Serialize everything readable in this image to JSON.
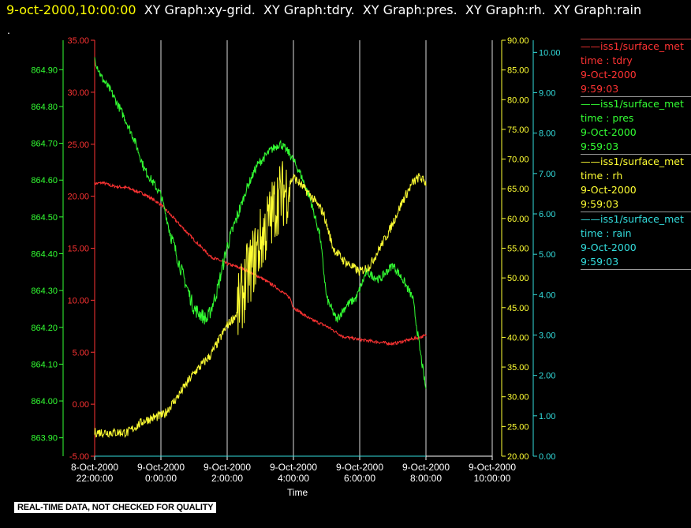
{
  "header": {
    "timestamp": "9-oct-2000,10:00:00",
    "graphs": [
      "XY Graph:xy-grid.",
      "XY Graph:tdry.",
      "XY Graph:pres.",
      "XY Graph:rh.",
      "XY Graph:rain"
    ],
    "dot": "."
  },
  "footer": "REAL-TIME DATA, NOT CHECKED FOR QUALITY",
  "legend": [
    {
      "source": "iss1/surface_met",
      "field": "time : tdry",
      "date": "9-Oct-2000",
      "time": "9:59:03",
      "color": "#ff3333"
    },
    {
      "source": "iss1/surface_met",
      "field": "time : pres",
      "date": "9-Oct-2000",
      "time": "9:59:03",
      "color": "#33ff33"
    },
    {
      "source": "iss1/surface_met",
      "field": "time : rh",
      "date": "9-Oct-2000",
      "time": "9:59:03",
      "color": "#ffff33"
    },
    {
      "source": "iss1/surface_met",
      "field": "time : rain",
      "date": "9-Oct-2000",
      "time": "9:59:03",
      "color": "#33dddd"
    }
  ],
  "chart_data": {
    "type": "line",
    "xlabel": "Time",
    "x_range": [
      "2000-10-08T22:00:00",
      "2000-10-09T10:00:00"
    ],
    "x_ticks": [
      {
        "date": "8-Oct-2000",
        "time": "22:00:00"
      },
      {
        "date": "9-Oct-2000",
        "time": "0:00:00"
      },
      {
        "date": "9-Oct-2000",
        "time": "2:00:00"
      },
      {
        "date": "9-Oct-2000",
        "time": "4:00:00"
      },
      {
        "date": "9-Oct-2000",
        "time": "6:00:00"
      },
      {
        "date": "9-Oct-2000",
        "time": "8:00:00"
      },
      {
        "date": "9-Oct-2000",
        "time": "10:00:00"
      }
    ],
    "vertical_grid": true,
    "axes": {
      "pres": {
        "side": "left",
        "color": "#33ff33",
        "ylim": [
          863.85,
          864.98
        ],
        "ticks": [
          "863.90",
          "864.00",
          "864.10",
          "864.20",
          "864.30",
          "864.40",
          "864.50",
          "864.60",
          "864.70",
          "864.80",
          "864.90"
        ]
      },
      "tdry": {
        "side": "left",
        "color": "#ff3333",
        "ylim": [
          -5,
          35
        ],
        "ticks": [
          "-5.00",
          "0.00",
          "5.00",
          "10.00",
          "15.00",
          "20.00",
          "25.00",
          "30.00",
          "35.00"
        ]
      },
      "rh": {
        "side": "right",
        "color": "#ffff33",
        "ylim": [
          20,
          90
        ],
        "ticks": [
          "20.00",
          "25.00",
          "30.00",
          "35.00",
          "40.00",
          "45.00",
          "50.00",
          "55.00",
          "60.00",
          "65.00",
          "70.00",
          "75.00",
          "80.00",
          "85.00",
          "90.00"
        ]
      },
      "rain": {
        "side": "right",
        "color": "#33dddd",
        "ylim": [
          0,
          10.3
        ],
        "ticks": [
          "0.00",
          "1.00",
          "2.00",
          "3.00",
          "4.00",
          "5.00",
          "6.00",
          "7.00",
          "8.00",
          "9.00",
          "10.00"
        ]
      }
    },
    "series": [
      {
        "name": "tdry",
        "axis": "tdry",
        "color": "#ff3333",
        "noise": 0.15,
        "hours": [
          0,
          0.25,
          0.5,
          1,
          1.5,
          2,
          2.5,
          3,
          3.5,
          4,
          4.5,
          5,
          5.5,
          5.9,
          6,
          6.5,
          7,
          7.5,
          8,
          8.5,
          9,
          9.5,
          10
        ],
        "values": [
          21.2,
          21.3,
          21.0,
          20.8,
          20.2,
          19.2,
          17.5,
          15.8,
          14.2,
          13.5,
          13.0,
          12.2,
          11.2,
          10.2,
          9.3,
          8.2,
          7.5,
          6.5,
          6.2,
          6.0,
          5.8,
          6.2,
          6.6
        ]
      },
      {
        "name": "pres",
        "axis": "pres",
        "color": "#33ff33",
        "noise": 0.012,
        "hours": [
          0,
          0.2,
          0.5,
          0.9,
          1.2,
          1.5,
          2,
          2.3,
          2.6,
          3.0,
          3.4,
          3.7,
          4.0,
          4.3,
          4.6,
          4.9,
          5.3,
          5.6,
          5.9,
          6.2,
          6.5,
          6.8,
          7.0,
          7.3,
          7.6,
          7.9,
          8.2,
          8.6,
          9.0,
          9.3,
          9.6,
          9.8,
          10
        ],
        "values": [
          864.93,
          864.88,
          864.84,
          864.77,
          864.71,
          864.63,
          864.56,
          864.45,
          864.36,
          864.25,
          864.22,
          864.3,
          864.42,
          864.5,
          864.58,
          864.64,
          864.68,
          864.7,
          864.67,
          864.62,
          864.55,
          864.45,
          864.28,
          864.22,
          864.26,
          864.28,
          864.35,
          864.33,
          864.37,
          864.33,
          864.28,
          864.15,
          864.03
        ]
      },
      {
        "name": "rh",
        "axis": "rh",
        "color": "#ffff33",
        "noise": 0.8,
        "hours": [
          0,
          1,
          1.5,
          2.1,
          2.5,
          3,
          3.5,
          4.0,
          4.3,
          4.6,
          5.0,
          5.3,
          5.5,
          5.8,
          6.0,
          6.5,
          6.9,
          7.2,
          7.5,
          8.0,
          8.3,
          8.6,
          8.9,
          9.3,
          9.6,
          9.8,
          10
        ],
        "values": [
          24,
          24,
          26,
          27,
          30,
          34,
          37,
          42,
          44,
          50,
          56,
          60,
          63,
          65,
          67,
          64,
          61,
          55,
          53,
          51,
          52,
          55,
          58,
          63,
          66,
          67,
          66
        ]
      },
      {
        "name": "rain",
        "axis": "rain",
        "color": "#33dddd",
        "noise": 0,
        "hours": [
          0,
          10
        ],
        "values": [
          0,
          0
        ]
      }
    ]
  }
}
